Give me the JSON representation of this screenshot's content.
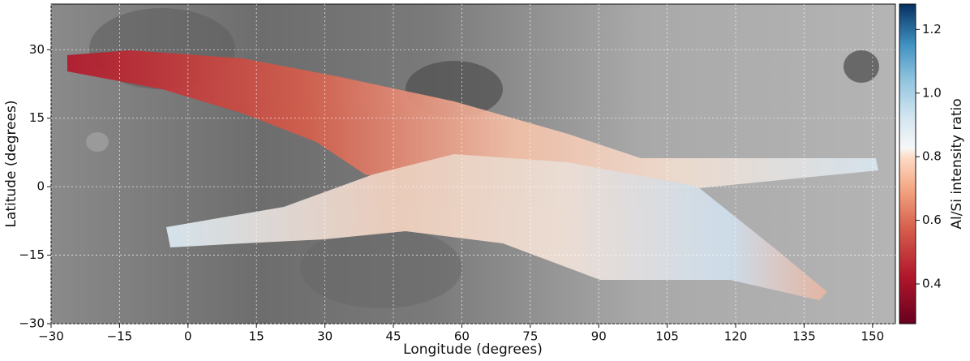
{
  "chart_data": {
    "type": "map",
    "xlabel": "Longitude (degrees)",
    "ylabel": "Latitude (degrees)",
    "xlim": [
      -30,
      155
    ],
    "ylim": [
      -30,
      40
    ],
    "xticks": [
      {
        "value": -30,
        "label": "−30"
      },
      {
        "value": -15,
        "label": "−15"
      },
      0,
      15,
      30,
      45,
      60,
      75,
      90,
      105,
      120,
      135,
      150
    ],
    "yticks": [
      {
        "value": -30,
        "label": "−30"
      },
      {
        "value": -15,
        "label": "−15"
      },
      0,
      15,
      30
    ],
    "grid": true,
    "colorbar": {
      "label": "Al/Si intensity ratio",
      "lim": [
        0.275,
        1.28
      ],
      "ticks": [
        0.4,
        0.6,
        0.8,
        {
          "value": 1,
          "label": "1.0"
        },
        1.2
      ]
    }
  }
}
